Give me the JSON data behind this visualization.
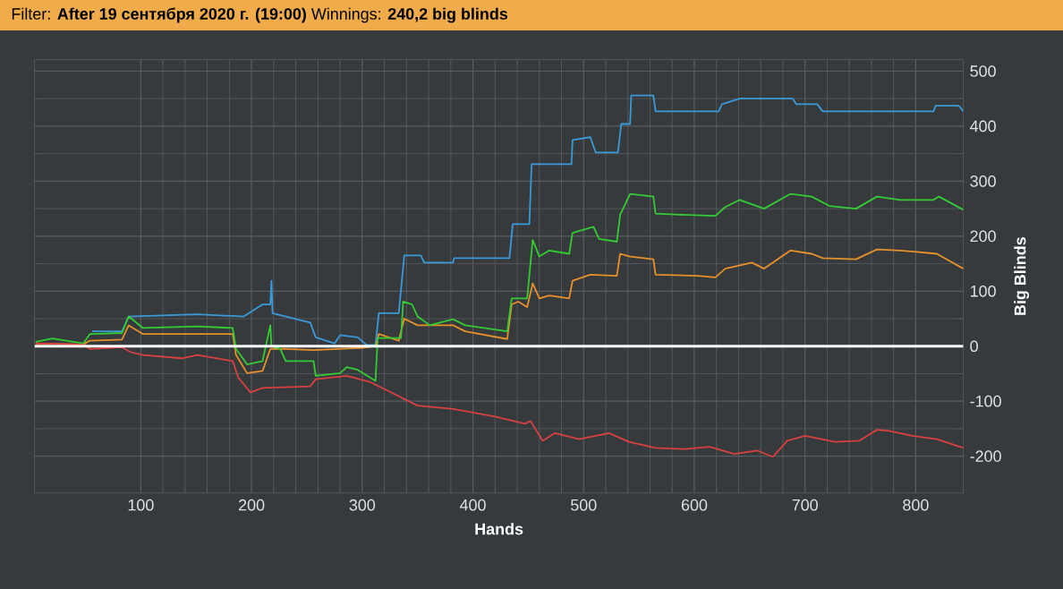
{
  "chart_data": {
    "type": "line",
    "title": "Filter: **After 19 сентября 2020 г. (19:00)** Winnings: **240,2 big blinds**",
    "xlabel": "Hands",
    "ylabel": "Big Blinds",
    "xlim": [
      4,
      843
    ],
    "ylim": [
      -267,
      521
    ],
    "xticks": [
      100,
      200,
      300,
      400,
      500,
      600,
      700,
      800
    ],
    "yticks": [
      -200,
      -100,
      0,
      100,
      200,
      300,
      400,
      500
    ],
    "grid": true,
    "ref_lines": [
      {
        "axis": "y",
        "value": 0,
        "color": "#ffffff"
      }
    ],
    "series": [
      {
        "color": "#3a9ad9",
        "x": [
          56,
          83,
          89,
          151,
          193,
          210,
          217,
          218,
          219,
          231,
          253,
          258,
          275,
          280,
          296,
          304,
          312,
          315,
          333,
          338,
          353,
          356,
          382,
          383,
          433,
          436,
          451,
          453,
          489,
          490,
          506,
          511,
          531,
          534,
          542,
          543,
          563,
          565,
          622,
          625,
          641,
          689,
          692,
          711,
          716,
          816,
          818,
          839,
          843
        ],
        "values": [
          27,
          27,
          54,
          58,
          54,
          76,
          76,
          119,
          60,
          54,
          43,
          16,
          5,
          20,
          16,
          2,
          2,
          60,
          60,
          165,
          165,
          152,
          152,
          160,
          160,
          222,
          222,
          331,
          331,
          375,
          380,
          352,
          352,
          404,
          404,
          456,
          456,
          427,
          427,
          440,
          450,
          450,
          440,
          440,
          427,
          427,
          437,
          437,
          427
        ]
      },
      {
        "color": "#e8902a",
        "x": [
          5,
          48,
          54,
          83,
          89,
          102,
          183,
          186,
          196,
          210,
          217,
          231,
          256,
          300,
          312,
          315,
          333,
          338,
          350,
          382,
          393,
          431,
          435,
          441,
          449,
          454,
          460,
          469,
          487,
          490,
          506,
          530,
          533,
          542,
          563,
          565,
          603,
          619,
          628,
          652,
          663,
          687,
          706,
          716,
          746,
          765,
          786,
          819,
          843
        ],
        "values": [
          5,
          3,
          10,
          12,
          38,
          22,
          22,
          -16,
          -49,
          -45,
          -5,
          -5,
          -7,
          -3,
          0,
          22,
          10,
          50,
          38,
          38,
          27,
          13,
          76,
          81,
          71,
          114,
          87,
          92,
          87,
          119,
          130,
          128,
          168,
          163,
          158,
          130,
          128,
          125,
          141,
          152,
          141,
          174,
          168,
          160,
          158,
          176,
          174,
          168,
          141
        ]
      },
      {
        "color": "#33cc33",
        "x": [
          5,
          20,
          48,
          54,
          83,
          89,
          102,
          151,
          183,
          186,
          196,
          210,
          217,
          218,
          226,
          231,
          256,
          258,
          280,
          286,
          296,
          312,
          314,
          335,
          337,
          345,
          350,
          361,
          382,
          393,
          431,
          435,
          449,
          454,
          460,
          469,
          487,
          490,
          509,
          514,
          530,
          533,
          542,
          563,
          565,
          587,
          619,
          628,
          641,
          663,
          687,
          706,
          722,
          746,
          765,
          786,
          816,
          821,
          843
        ],
        "values": [
          8,
          14,
          5,
          22,
          24,
          54,
          33,
          36,
          33,
          -5,
          -33,
          -27,
          38,
          0,
          -5,
          -27,
          -27,
          -54,
          -49,
          -38,
          -43,
          -63,
          15,
          15,
          81,
          76,
          54,
          38,
          49,
          38,
          27,
          87,
          87,
          193,
          163,
          174,
          168,
          206,
          217,
          195,
          190,
          239,
          277,
          272,
          241,
          239,
          237,
          253,
          266,
          250,
          277,
          272,
          255,
          250,
          272,
          266,
          266,
          272,
          248
        ]
      },
      {
        "color": "#d94040",
        "x": [
          5,
          48,
          54,
          83,
          91,
          102,
          137,
          151,
          183,
          188,
          199,
          210,
          253,
          258,
          286,
          307,
          323,
          350,
          382,
          420,
          447,
          452,
          463,
          474,
          496,
          523,
          541,
          565,
          592,
          614,
          636,
          657,
          671,
          684,
          700,
          727,
          749,
          765,
          776,
          797,
          819,
          843
        ],
        "values": [
          5,
          3,
          -5,
          -2,
          -11,
          -16,
          -22,
          -16,
          -27,
          -57,
          -84,
          -76,
          -73,
          -60,
          -54,
          -65,
          -81,
          -108,
          -114,
          -128,
          -141,
          -136,
          -172,
          -158,
          -169,
          -158,
          -174,
          -185,
          -187,
          -183,
          -196,
          -190,
          -201,
          -172,
          -163,
          -174,
          -172,
          -152,
          -154,
          -163,
          -169,
          -185
        ]
      }
    ]
  }
}
